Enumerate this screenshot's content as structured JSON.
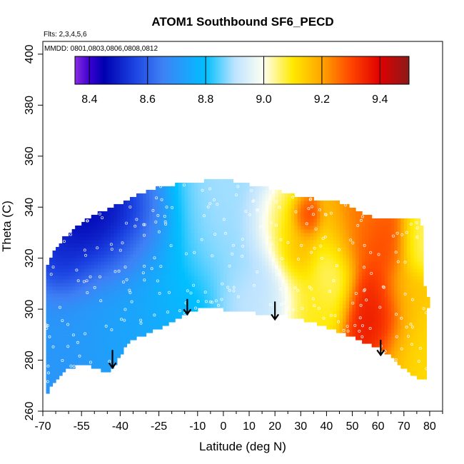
{
  "chart_data": {
    "type": "heatmap",
    "title": "ATOM1 Southbound SF6_PECD",
    "xlabel": "Latitude (deg N)",
    "ylabel": "Theta (C)",
    "xlim": [
      -70,
      85
    ],
    "ylim": [
      260,
      405
    ],
    "x_ticks": [
      -70,
      -55,
      -40,
      -25,
      -10,
      0,
      10,
      20,
      30,
      40,
      50,
      60,
      70,
      80
    ],
    "x_tick_labels": [
      "-70",
      "-55",
      "-40",
      "-25",
      "-10",
      "0",
      "10",
      "20",
      "30",
      "40",
      "50",
      "60",
      "70",
      "80"
    ],
    "x_minor_ticks": [
      -65,
      -60,
      -50,
      -45,
      -35,
      -30,
      -20,
      -15,
      -5,
      5,
      15,
      25,
      35,
      45,
      55,
      65,
      75,
      85
    ],
    "y_ticks": [
      260,
      280,
      300,
      320,
      340,
      360,
      380,
      400
    ],
    "y_tick_labels": [
      "260",
      "280",
      "300",
      "320",
      "340",
      "360",
      "380",
      "400"
    ],
    "annotations": [
      "Flts: 2,3,4,5,6",
      "MMDD: 0801,0803,0806,0808,0812"
    ],
    "colorbar": {
      "min": 8.35,
      "max": 9.5,
      "ticks": [
        8.4,
        8.6,
        8.8,
        9.0,
        9.2,
        9.4
      ],
      "tick_labels": [
        "8.4",
        "8.6",
        "8.8",
        "9.0",
        "9.2",
        "9.4"
      ],
      "gradient_stops": [
        {
          "value": 8.35,
          "color": "#8a2be2"
        },
        {
          "value": 8.4,
          "color": "#3a00d0"
        },
        {
          "value": 8.45,
          "color": "#0000b0"
        },
        {
          "value": 8.55,
          "color": "#1a40e0"
        },
        {
          "value": 8.65,
          "color": "#3f80f5"
        },
        {
          "value": 8.8,
          "color": "#00bfff"
        },
        {
          "value": 8.9,
          "color": "#bde3ff"
        },
        {
          "value": 9.0,
          "color": "#fffff0"
        },
        {
          "value": 9.1,
          "color": "#ffe900"
        },
        {
          "value": 9.2,
          "color": "#ffa500"
        },
        {
          "value": 9.3,
          "color": "#ff4500"
        },
        {
          "value": 9.4,
          "color": "#e00000"
        },
        {
          "value": 9.5,
          "color": "#8b1a1a"
        }
      ]
    },
    "domain_outline": [
      [
        -69,
        266
      ],
      [
        -67,
        269
      ],
      [
        -61,
        276
      ],
      [
        -57,
        278
      ],
      [
        -52,
        278
      ],
      [
        -44,
        275
      ],
      [
        -36,
        288
      ],
      [
        -28,
        291
      ],
      [
        -20,
        295
      ],
      [
        -13,
        299
      ],
      [
        -7,
        301
      ],
      [
        5,
        299
      ],
      [
        20,
        298
      ],
      [
        35,
        295
      ],
      [
        50,
        289
      ],
      [
        62,
        284
      ],
      [
        72,
        275
      ],
      [
        78,
        272
      ],
      [
        79,
        276
      ],
      [
        79,
        300
      ],
      [
        80,
        302
      ],
      [
        79,
        306
      ],
      [
        77,
        312
      ],
      [
        78,
        330
      ],
      [
        76,
        335
      ],
      [
        60,
        335
      ],
      [
        45,
        342
      ],
      [
        30,
        344
      ],
      [
        20,
        347
      ],
      [
        10,
        349
      ],
      [
        0,
        351
      ],
      [
        -10,
        350
      ],
      [
        -25,
        348
      ],
      [
        -35,
        344
      ],
      [
        -43,
        340
      ],
      [
        -50,
        337
      ],
      [
        -55,
        334
      ],
      [
        -62,
        328
      ],
      [
        -66,
        322
      ],
      [
        -69,
        316
      ]
    ],
    "field_centers": [
      {
        "lat": -52,
        "theta": 330,
        "value": 8.42,
        "sigma_lat": 10,
        "sigma_theta": 12
      },
      {
        "lat": -45,
        "theta": 336,
        "value": 8.45,
        "sigma_lat": 8,
        "sigma_theta": 6
      },
      {
        "lat": -62,
        "theta": 318,
        "value": 8.48,
        "sigma_lat": 6,
        "sigma_theta": 8
      },
      {
        "lat": -35,
        "theta": 330,
        "value": 8.62,
        "sigma_lat": 10,
        "sigma_theta": 10
      },
      {
        "lat": -60,
        "theta": 295,
        "value": 8.7,
        "sigma_lat": 12,
        "sigma_theta": 20
      },
      {
        "lat": -40,
        "theta": 298,
        "value": 8.74,
        "sigma_lat": 12,
        "sigma_theta": 15
      },
      {
        "lat": -18,
        "theta": 315,
        "value": 8.78,
        "sigma_lat": 10,
        "sigma_theta": 15
      },
      {
        "lat": -8,
        "theta": 328,
        "value": 8.9,
        "sigma_lat": 8,
        "sigma_theta": 12
      },
      {
        "lat": 10,
        "theta": 318,
        "value": 8.88,
        "sigma_lat": 8,
        "sigma_theta": 15
      },
      {
        "lat": 15,
        "theta": 305,
        "value": 8.92,
        "sigma_lat": 8,
        "sigma_theta": 8
      },
      {
        "lat": 22,
        "theta": 330,
        "value": 9.08,
        "sigma_lat": 6,
        "sigma_theta": 8
      },
      {
        "lat": 28,
        "theta": 325,
        "value": 9.2,
        "sigma_lat": 5,
        "sigma_theta": 8
      },
      {
        "lat": 32,
        "theta": 335,
        "value": 9.35,
        "sigma_lat": 3,
        "sigma_theta": 4
      },
      {
        "lat": 35,
        "theta": 305,
        "value": 9.1,
        "sigma_lat": 8,
        "sigma_theta": 10
      },
      {
        "lat": 42,
        "theta": 318,
        "value": 9.02,
        "sigma_lat": 5,
        "sigma_theta": 10
      },
      {
        "lat": 50,
        "theta": 328,
        "value": 9.25,
        "sigma_lat": 8,
        "sigma_theta": 8
      },
      {
        "lat": 62,
        "theta": 325,
        "value": 9.3,
        "sigma_lat": 6,
        "sigma_theta": 6
      },
      {
        "lat": 58,
        "theta": 300,
        "value": 9.35,
        "sigma_lat": 6,
        "sigma_theta": 12
      },
      {
        "lat": 60,
        "theta": 296,
        "value": 9.38,
        "sigma_lat": 5,
        "sigma_theta": 6
      },
      {
        "lat": 70,
        "theta": 295,
        "value": 9.15,
        "sigma_lat": 6,
        "sigma_theta": 15
      },
      {
        "lat": 75,
        "theta": 325,
        "value": 9.05,
        "sigma_lat": 4,
        "sigma_theta": 6
      },
      {
        "lat": 77,
        "theta": 280,
        "value": 9.12,
        "sigma_lat": 4,
        "sigma_theta": 10
      }
    ],
    "arrows": [
      {
        "lat": -43,
        "theta_from": 284,
        "theta_to": 277
      },
      {
        "lat": -14,
        "theta_from": 304,
        "theta_to": 298
      },
      {
        "lat": 20,
        "theta_from": 303,
        "theta_to": 296
      },
      {
        "lat": 61,
        "theta_from": 288,
        "theta_to": 282
      }
    ],
    "sample_density": 260
  }
}
